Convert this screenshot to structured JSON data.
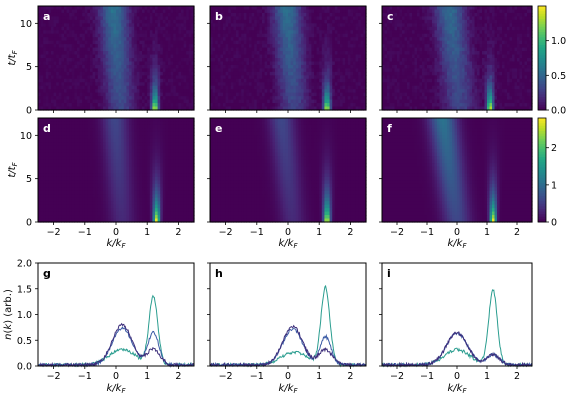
{
  "chart_data": {
    "type": "heatmap",
    "colormap": "viridis",
    "panels": [
      {
        "label": "a",
        "type": "heatmap",
        "row": "top",
        "xlim": [
          -2.5,
          2.5
        ],
        "ylim": [
          0,
          12
        ],
        "ylabel": "t/t_F",
        "features": [
          {
            "name": "broad",
            "k0": 0.15,
            "width": 0.45,
            "amp": 1.0,
            "t_drift": -0.02
          },
          {
            "name": "narrow",
            "k": 1.25,
            "amp": 1.5,
            "t_peak": 0
          }
        ],
        "colorbar": null
      },
      {
        "label": "b",
        "type": "heatmap",
        "row": "top",
        "xlim": [
          -2.5,
          2.5
        ],
        "ylim": [
          0,
          12
        ],
        "ylabel": "",
        "features": [
          {
            "name": "broad",
            "k0": 0.2,
            "width": 0.45,
            "amp": 0.9,
            "t_drift": -0.02
          },
          {
            "name": "narrow",
            "k": 1.25,
            "amp": 1.4,
            "t_peak": 0
          }
        ],
        "colorbar": null
      },
      {
        "label": "c",
        "type": "heatmap",
        "row": "top",
        "xlim": [
          -2.5,
          2.5
        ],
        "ylim": [
          0,
          12
        ],
        "ylabel": "",
        "features": [
          {
            "name": "broad",
            "k0": 0.1,
            "width": 0.5,
            "amp": 0.8,
            "t_drift": -0.03
          },
          {
            "name": "narrow",
            "k": 1.1,
            "amp": 1.3,
            "t_peak": 0
          }
        ],
        "colorbar": {
          "ticks": [
            "0.0",
            "0.5",
            "1.0"
          ],
          "vmin": 0,
          "vmax": 1.5
        }
      },
      {
        "label": "d",
        "type": "heatmap",
        "row": "middle",
        "xlim": [
          -2.5,
          2.5
        ],
        "ylim": [
          0,
          12
        ],
        "ylabel": "t/t_F",
        "features": [
          {
            "name": "broad",
            "k0": 0.2,
            "width": 0.4,
            "amp": 1.0,
            "t_drift": -0.02
          },
          {
            "name": "narrow",
            "k": 1.3,
            "amp": 2.7,
            "t_peak": 0
          }
        ],
        "colorbar": null
      },
      {
        "label": "e",
        "type": "heatmap",
        "row": "middle",
        "xlim": [
          -2.5,
          2.5
        ],
        "ylim": [
          0,
          12
        ],
        "ylabel": "",
        "features": [
          {
            "name": "broad",
            "k0": 0.15,
            "width": 0.4,
            "amp": 0.9,
            "t_drift": -0.03
          },
          {
            "name": "narrow",
            "k": 1.25,
            "amp": 2.4,
            "t_peak": 0
          }
        ],
        "colorbar": null
      },
      {
        "label": "f",
        "type": "heatmap",
        "row": "middle",
        "xlim": [
          -2.5,
          2.5
        ],
        "ylim": [
          0,
          12
        ],
        "ylabel": "",
        "features": [
          {
            "name": "broad",
            "k0": 0.0,
            "width": 0.45,
            "amp": 0.8,
            "t_drift": -0.04
          },
          {
            "name": "narrow",
            "k": 1.2,
            "amp": 1.2,
            "t_peak": 0
          }
        ],
        "colorbar": {
          "ticks": [
            "0",
            "1",
            "2"
          ],
          "vmin": 0,
          "vmax": 2.8
        }
      },
      {
        "label": "g",
        "type": "line",
        "row": "bottom",
        "xlim": [
          -2.5,
          2.5
        ],
        "ylim": [
          0,
          2.0
        ],
        "ylabel": "n(k) (arb.)",
        "series": [
          {
            "color": "#2a9d8f",
            "peaks": [
              {
                "k": 1.2,
                "h": 1.32,
                "w": 0.2
              },
              {
                "k": 0.2,
                "h": 0.3,
                "w": 0.6
              }
            ]
          },
          {
            "color": "#3b5ba5",
            "peaks": [
              {
                "k": 0.2,
                "h": 0.72,
                "w": 0.45
              },
              {
                "k": 1.2,
                "h": 0.63,
                "w": 0.25
              }
            ]
          },
          {
            "color": "#3c2d7a",
            "peaks": [
              {
                "k": 0.2,
                "h": 0.78,
                "w": 0.45
              },
              {
                "k": 1.2,
                "h": 0.3,
                "w": 0.3
              }
            ]
          }
        ]
      },
      {
        "label": "h",
        "type": "line",
        "row": "bottom",
        "xlim": [
          -2.5,
          2.5
        ],
        "ylim": [
          0,
          2.0
        ],
        "ylabel": "",
        "series": [
          {
            "color": "#2a9d8f",
            "peaks": [
              {
                "k": 1.2,
                "h": 1.5,
                "w": 0.2
              },
              {
                "k": 0.2,
                "h": 0.25,
                "w": 0.6
              }
            ]
          },
          {
            "color": "#3b5ba5",
            "peaks": [
              {
                "k": 0.15,
                "h": 0.7,
                "w": 0.45
              },
              {
                "k": 1.2,
                "h": 0.55,
                "w": 0.25
              }
            ]
          },
          {
            "color": "#3c2d7a",
            "peaks": [
              {
                "k": 0.15,
                "h": 0.75,
                "w": 0.45
              },
              {
                "k": 1.2,
                "h": 0.3,
                "w": 0.3
              }
            ]
          }
        ]
      },
      {
        "label": "i",
        "type": "line",
        "row": "bottom",
        "xlim": [
          -2.5,
          2.5
        ],
        "ylim": [
          0,
          2.0
        ],
        "ylabel": "",
        "series": [
          {
            "color": "#2a9d8f",
            "peaks": [
              {
                "k": 1.2,
                "h": 1.45,
                "w": 0.2
              },
              {
                "k": 0.0,
                "h": 0.3,
                "w": 0.6
              }
            ]
          },
          {
            "color": "#3b5ba5",
            "peaks": [
              {
                "k": 0.0,
                "h": 0.62,
                "w": 0.5
              },
              {
                "k": 1.2,
                "h": 0.2,
                "w": 0.3
              }
            ]
          },
          {
            "color": "#3c2d7a",
            "peaks": [
              {
                "k": 0.0,
                "h": 0.62,
                "w": 0.5
              },
              {
                "k": 1.2,
                "h": 0.2,
                "w": 0.3
              }
            ]
          }
        ]
      }
    ],
    "x_ticks": [
      "−2",
      "−1",
      "0",
      "1",
      "2"
    ],
    "y_ticks_heat": [
      "0",
      "5",
      "10"
    ],
    "y_ticks_line": [
      "0.0",
      "0.5",
      "1.0",
      "1.5",
      "2.0"
    ],
    "xlabel": "k/k_F"
  }
}
